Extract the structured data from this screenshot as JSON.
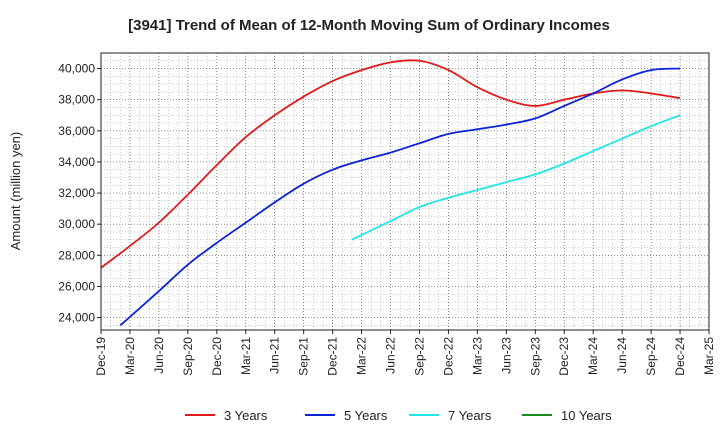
{
  "chart_data": {
    "type": "line",
    "title": "[3941]  Trend of Mean of 12-Month Moving Sum of Ordinary Incomes",
    "xlabel": "",
    "ylabel": "Amount (million yen)",
    "ylim": [
      23200,
      41000
    ],
    "yticks": [
      24000,
      26000,
      28000,
      30000,
      32000,
      34000,
      36000,
      38000,
      40000
    ],
    "ytick_labels": [
      "24,000",
      "26,000",
      "28,000",
      "30,000",
      "32,000",
      "34,000",
      "36,000",
      "38,000",
      "40,000"
    ],
    "x_tick_labels": [
      "Dec-19",
      "Mar-20",
      "Jun-20",
      "Sep-20",
      "Dec-20",
      "Mar-21",
      "Jun-21",
      "Sep-21",
      "Dec-21",
      "Mar-22",
      "Jun-22",
      "Sep-22",
      "Dec-22",
      "Mar-23",
      "Jun-23",
      "Sep-23",
      "Dec-23",
      "Mar-24",
      "Jun-24",
      "Sep-24",
      "Dec-24",
      "Mar-25"
    ],
    "grid": true,
    "series": [
      {
        "name": "3 Years",
        "color": "#e31a1c",
        "values": [
          [
            0,
            27200
          ],
          [
            1,
            28600
          ],
          [
            2,
            30100
          ],
          [
            3,
            31900
          ],
          [
            4,
            33800
          ],
          [
            5,
            35600
          ],
          [
            6,
            37000
          ],
          [
            7,
            38200
          ],
          [
            8,
            39200
          ],
          [
            9,
            39900
          ],
          [
            10,
            40400
          ],
          [
            11,
            40500
          ],
          [
            12,
            39900
          ],
          [
            13,
            38800
          ],
          [
            14,
            38000
          ],
          [
            15,
            37600
          ],
          [
            16,
            38000
          ],
          [
            17,
            38400
          ],
          [
            18,
            38600
          ],
          [
            19,
            38400
          ],
          [
            20,
            38100
          ]
        ]
      },
      {
        "name": "5 Years",
        "color": "#0a22d8",
        "values": [
          [
            0.67,
            23500
          ],
          [
            2,
            25700
          ],
          [
            3,
            27400
          ],
          [
            4,
            28800
          ],
          [
            5,
            30100
          ],
          [
            6,
            31400
          ],
          [
            7,
            32600
          ],
          [
            8,
            33500
          ],
          [
            9,
            34100
          ],
          [
            10,
            34600
          ],
          [
            11,
            35200
          ],
          [
            12,
            35800
          ],
          [
            13,
            36100
          ],
          [
            14,
            36400
          ],
          [
            15,
            36800
          ],
          [
            16,
            37600
          ],
          [
            17,
            38400
          ],
          [
            18,
            39300
          ],
          [
            19,
            39900
          ],
          [
            20,
            40000
          ]
        ]
      },
      {
        "name": "7 Years",
        "color": "#22e5e5",
        "values": [
          [
            8.67,
            29000
          ],
          [
            10,
            30200
          ],
          [
            11,
            31100
          ],
          [
            12,
            31700
          ],
          [
            13,
            32200
          ],
          [
            14,
            32700
          ],
          [
            15,
            33200
          ],
          [
            16,
            33900
          ],
          [
            17,
            34700
          ],
          [
            18,
            35500
          ],
          [
            19,
            36300
          ],
          [
            20,
            37000
          ]
        ]
      },
      {
        "name": "10 Years",
        "color": "#1a8a1a",
        "values": []
      }
    ],
    "legend_position": "bottom"
  }
}
